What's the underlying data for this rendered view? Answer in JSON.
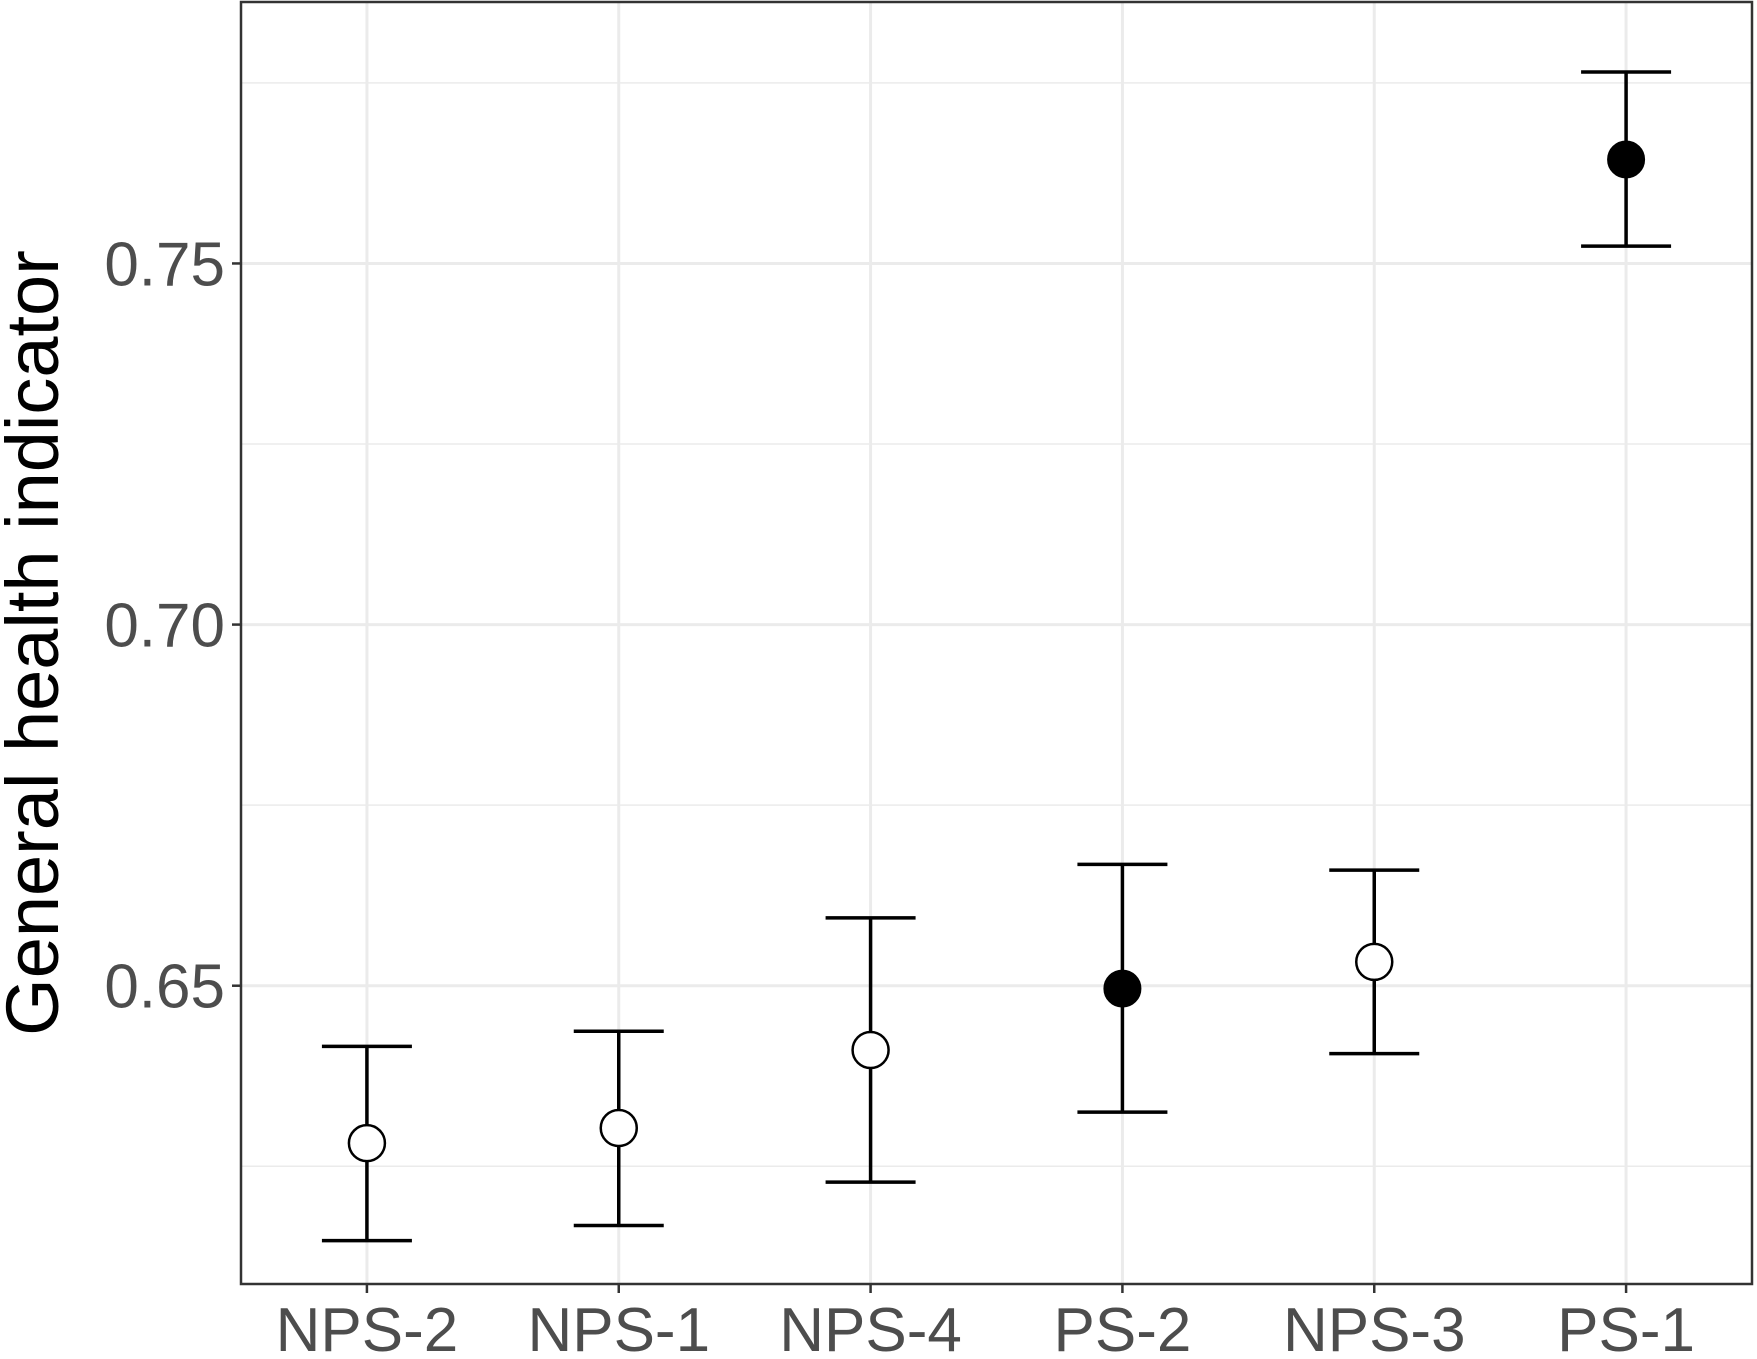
{
  "chart_data": {
    "type": "scatter",
    "title": "",
    "xlabel": "",
    "ylabel": "General health indicator",
    "categories": [
      "NPS-2",
      "NPS-1",
      "NPS-4",
      "PS-2",
      "NPS-3",
      "PS-1"
    ],
    "points": [
      {
        "category": "NPS-2",
        "y": 0.6282,
        "lower": 0.6147,
        "upper": 0.6416,
        "filled": false
      },
      {
        "category": "NPS-1",
        "y": 0.6303,
        "lower": 0.6168,
        "upper": 0.6437,
        "filled": false
      },
      {
        "category": "NPS-4",
        "y": 0.6411,
        "lower": 0.6228,
        "upper": 0.6594,
        "filled": false
      },
      {
        "category": "PS-2",
        "y": 0.6496,
        "lower": 0.6325,
        "upper": 0.6668,
        "filled": true
      },
      {
        "category": "NPS-3",
        "y": 0.6533,
        "lower": 0.6406,
        "upper": 0.666,
        "filled": false
      },
      {
        "category": "PS-1",
        "y": 0.7644,
        "lower": 0.7524,
        "upper": 0.7765,
        "filled": true
      }
    ],
    "y_ticks": [
      "0.65",
      "0.70",
      "0.75"
    ],
    "y_tick_values": [
      0.65,
      0.7,
      0.75
    ],
    "y_minor_grid": [
      0.625,
      0.675,
      0.725,
      0.775
    ],
    "ylim": [
      0.6087,
      0.7862
    ],
    "grid": true,
    "legend": "none",
    "colors": {
      "points": "#000000",
      "grid": "#ebebeb",
      "panel_border": "#333333",
      "tick_label": "#4d4d4d"
    }
  }
}
